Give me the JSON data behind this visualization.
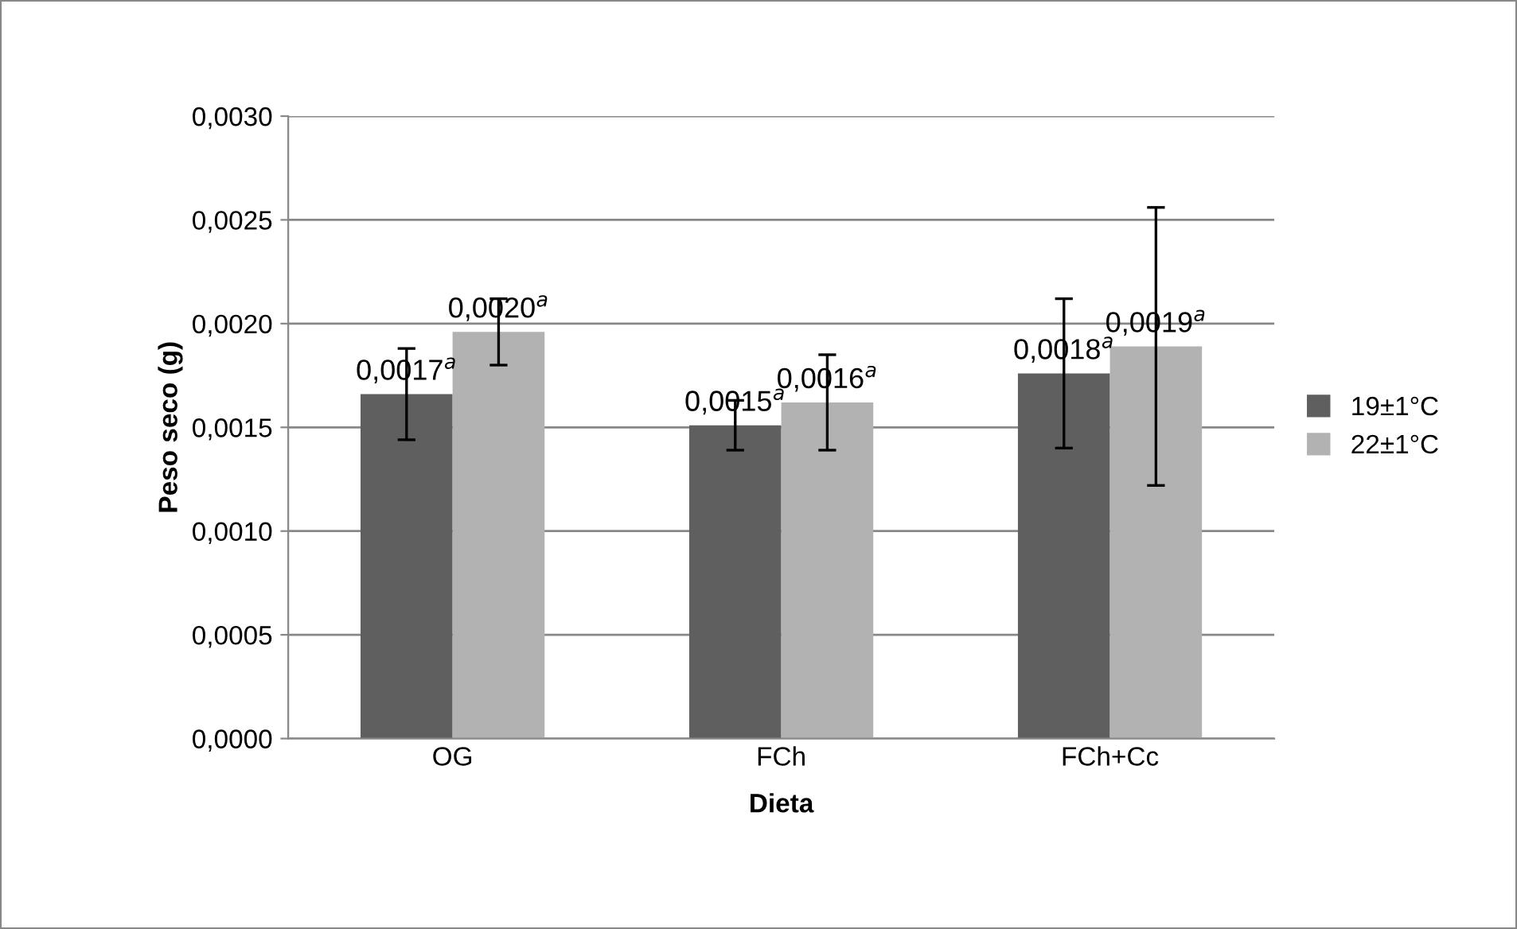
{
  "chart_data": {
    "type": "bar",
    "xlabel": "Dieta",
    "ylabel": "Peso seco (g)",
    "categories": [
      "OG",
      "FCh",
      "FCh+Cc"
    ],
    "series": [
      {
        "name": "19±1°C",
        "color": "#5f5f5f",
        "values": [
          0.00166,
          0.00151,
          0.00176
        ],
        "errors": [
          0.00022,
          0.00012,
          0.00036
        ],
        "value_labels": [
          "0,0017$^{a}$",
          "0,0015$^{a}$",
          "0,0018$^{a}$"
        ]
      },
      {
        "name": "22±1°C",
        "color": "#b2b2b2",
        "values": [
          0.00196,
          0.00162,
          0.00189
        ],
        "errors": [
          0.00016,
          0.00023,
          0.00067
        ],
        "value_labels": [
          "0,0020$^{a}$",
          "0,0016$^{a}$",
          "0,0019$^{a}$"
        ]
      }
    ],
    "ylim": [
      0,
      0.003
    ],
    "yticks": [
      {
        "value": 0,
        "label": "0,0000"
      },
      {
        "value": 0.0005,
        "label": "0,0005"
      },
      {
        "value": 0.001,
        "label": "0,0010"
      },
      {
        "value": 0.0015,
        "label": "0,0015"
      },
      {
        "value": 0.002,
        "label": "0,0020"
      },
      {
        "value": 0.0025,
        "label": "0,0025"
      },
      {
        "value": 0.003,
        "label": "0,0030"
      }
    ],
    "grid": "y",
    "legend": "right"
  }
}
